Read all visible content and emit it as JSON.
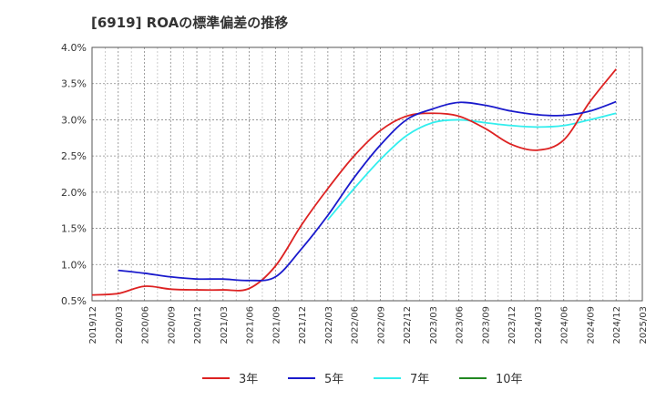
{
  "title": "[6919]  ROAの標準偏差の推移",
  "chart_data": {
    "type": "line",
    "title": "[6919]  ROAの標準偏差の推移",
    "y_tick_labels": [
      "0.5%",
      "1.0%",
      "1.5%",
      "2.0%",
      "2.5%",
      "3.0%",
      "3.5%",
      "4.0%"
    ],
    "y_ticks": [
      0.5,
      1.0,
      1.5,
      2.0,
      2.5,
      3.0,
      3.5,
      4.0
    ],
    "ylim": [
      0.5,
      4.0
    ],
    "x_tick_labels": [
      "2019/12",
      "2020/03",
      "2020/06",
      "2020/09",
      "2020/12",
      "2021/03",
      "2021/06",
      "2021/09",
      "2021/12",
      "2022/03",
      "2022/06",
      "2022/09",
      "2022/12",
      "2023/03",
      "2023/06",
      "2023/09",
      "2023/12",
      "2024/03",
      "2024/06",
      "2024/09",
      "2024/12",
      "2025/03"
    ],
    "grid": true,
    "legend_position": "bottom",
    "series": [
      {
        "name": "3年",
        "color": "#dd2222",
        "x": [
          "2019/12",
          "2020/03",
          "2020/06",
          "2020/09",
          "2020/12",
          "2021/03",
          "2021/06",
          "2021/09",
          "2021/12",
          "2022/03",
          "2022/06",
          "2022/09",
          "2022/12",
          "2023/03",
          "2023/06",
          "2023/09",
          "2023/12",
          "2024/03",
          "2024/06",
          "2024/09",
          "2024/12"
        ],
        "values": [
          0.58,
          0.6,
          0.7,
          0.66,
          0.65,
          0.65,
          0.67,
          0.98,
          1.55,
          2.05,
          2.5,
          2.85,
          3.05,
          3.09,
          3.05,
          2.88,
          2.66,
          2.58,
          2.72,
          3.25,
          3.7
        ]
      },
      {
        "name": "5年",
        "color": "#1a1acc",
        "x": [
          "2020/03",
          "2020/06",
          "2020/09",
          "2020/12",
          "2021/03",
          "2021/06",
          "2021/09",
          "2021/12",
          "2022/03",
          "2022/06",
          "2022/09",
          "2022/12",
          "2023/03",
          "2023/06",
          "2023/09",
          "2023/12",
          "2024/03",
          "2024/06",
          "2024/09",
          "2024/12"
        ],
        "values": [
          0.92,
          0.88,
          0.83,
          0.8,
          0.8,
          0.78,
          0.83,
          1.22,
          1.68,
          2.2,
          2.65,
          3.0,
          3.15,
          3.24,
          3.2,
          3.12,
          3.07,
          3.06,
          3.12,
          3.25
        ]
      },
      {
        "name": "7年",
        "color": "#33eeee",
        "x": [
          "2022/03",
          "2022/06",
          "2022/09",
          "2022/12",
          "2023/03",
          "2023/06",
          "2023/09",
          "2023/12",
          "2024/03",
          "2024/06",
          "2024/09",
          "2024/12"
        ],
        "values": [
          1.62,
          2.05,
          2.45,
          2.78,
          2.96,
          3.0,
          2.96,
          2.92,
          2.9,
          2.92,
          3.0,
          3.09
        ]
      },
      {
        "name": "10年",
        "color": "#228822",
        "x": [],
        "values": []
      }
    ]
  }
}
